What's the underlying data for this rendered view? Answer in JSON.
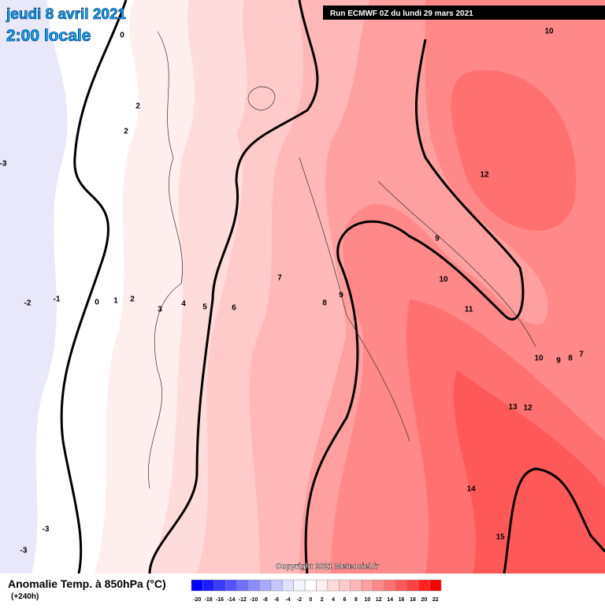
{
  "header": {
    "date": "jeudi 8 avril 2021",
    "time": "2:00 locale",
    "run": "Run ECMWF 0Z du lundi 29 mars 2021"
  },
  "copyright": "Copyright 2021 Meteociel.fr",
  "legend": {
    "title": "Anomalie Temp. à 850hPa (°C)",
    "lead": "(+240h)",
    "ticks": [
      -20,
      -18,
      -16,
      -14,
      -12,
      -10,
      -8,
      -6,
      -4,
      -2,
      0,
      2,
      4,
      6,
      8,
      10,
      12,
      14,
      16,
      18,
      20,
      22
    ],
    "colors": [
      "#0000ff",
      "#1c1cff",
      "#3838ff",
      "#5454ff",
      "#7070ff",
      "#8c8cff",
      "#a8a8ff",
      "#c4c4ff",
      "#e0e0ff",
      "#f4f4ff",
      "#ffffff",
      "#ffeeee",
      "#ffdcdc",
      "#ffcaca",
      "#ffb8b8",
      "#ffa0a0",
      "#ff8888",
      "#ff7070",
      "#ff5858",
      "#ff4040",
      "#ff2020",
      "#ff0000"
    ]
  },
  "contour_labels": [
    "0",
    "10",
    "2",
    "2",
    "12",
    "9",
    "10",
    "7",
    "8",
    "9",
    "11",
    "-2",
    "-1",
    "0",
    "1",
    "2",
    "3",
    "4",
    "5",
    "6",
    "10",
    "9",
    "8",
    "7",
    "13",
    "12",
    "14",
    "15",
    "-3",
    "-3",
    "-3"
  ]
}
